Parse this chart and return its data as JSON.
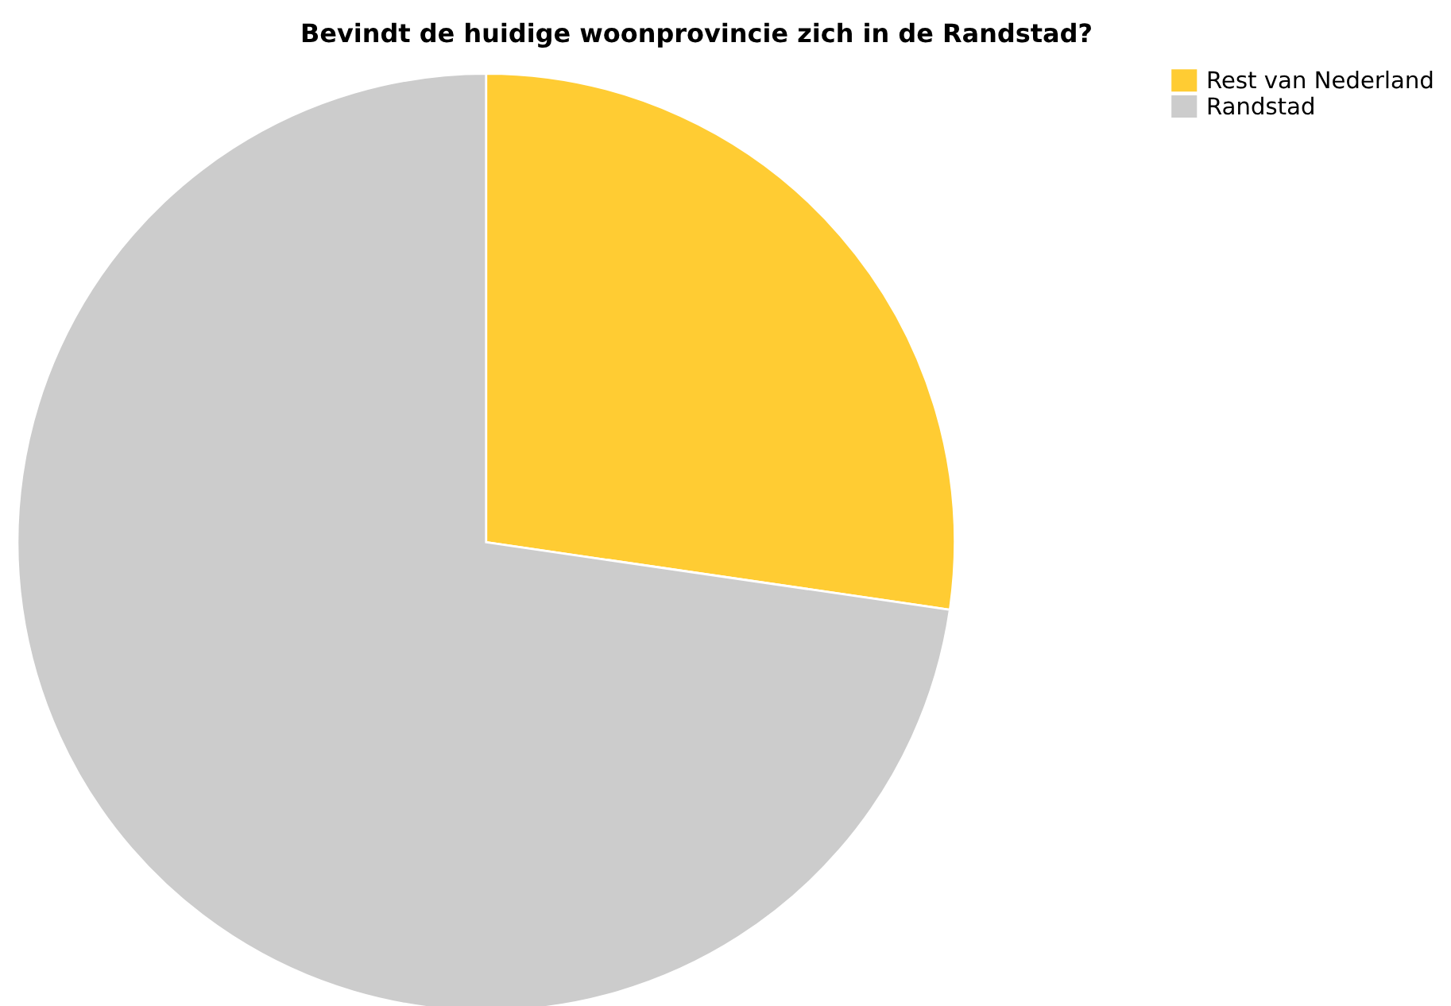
{
  "chart_data": {
    "type": "pie",
    "title": "Bevindt de huidige woonprovincie zich in de Randstad?",
    "categories": [
      "Rest van Nederland",
      "Randstad"
    ],
    "values": [
      27.3,
      72.7
    ],
    "colors": [
      "#ffcc33",
      "#cccccc"
    ],
    "legend": "top right"
  }
}
